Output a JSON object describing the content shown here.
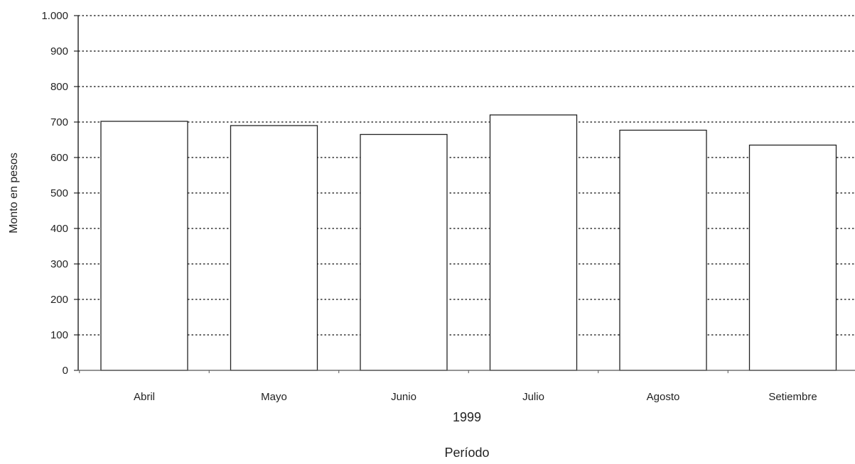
{
  "chart_data": {
    "type": "bar",
    "title": "",
    "ylabel": "Monto en pesos",
    "xlabel": "Período",
    "x_group_label": "1999",
    "categories": [
      "Abril",
      "Mayo",
      "Junio",
      "Julio",
      "Agosto",
      "Setiembre"
    ],
    "values": [
      702,
      690,
      665,
      720,
      677,
      635
    ],
    "ylim": [
      0,
      1000
    ],
    "yticks": [
      0,
      100,
      200,
      300,
      400,
      500,
      600,
      700,
      800,
      900,
      1000
    ],
    "ytick_labels": [
      "0",
      "100",
      "200",
      "300",
      "400",
      "500",
      "600",
      "700",
      "800",
      "900",
      "1.000"
    ],
    "grid": true,
    "grid_style": "dotted",
    "bar_fill": "#ffffff",
    "bar_stroke": "#222222",
    "grid_color": "#333333"
  }
}
